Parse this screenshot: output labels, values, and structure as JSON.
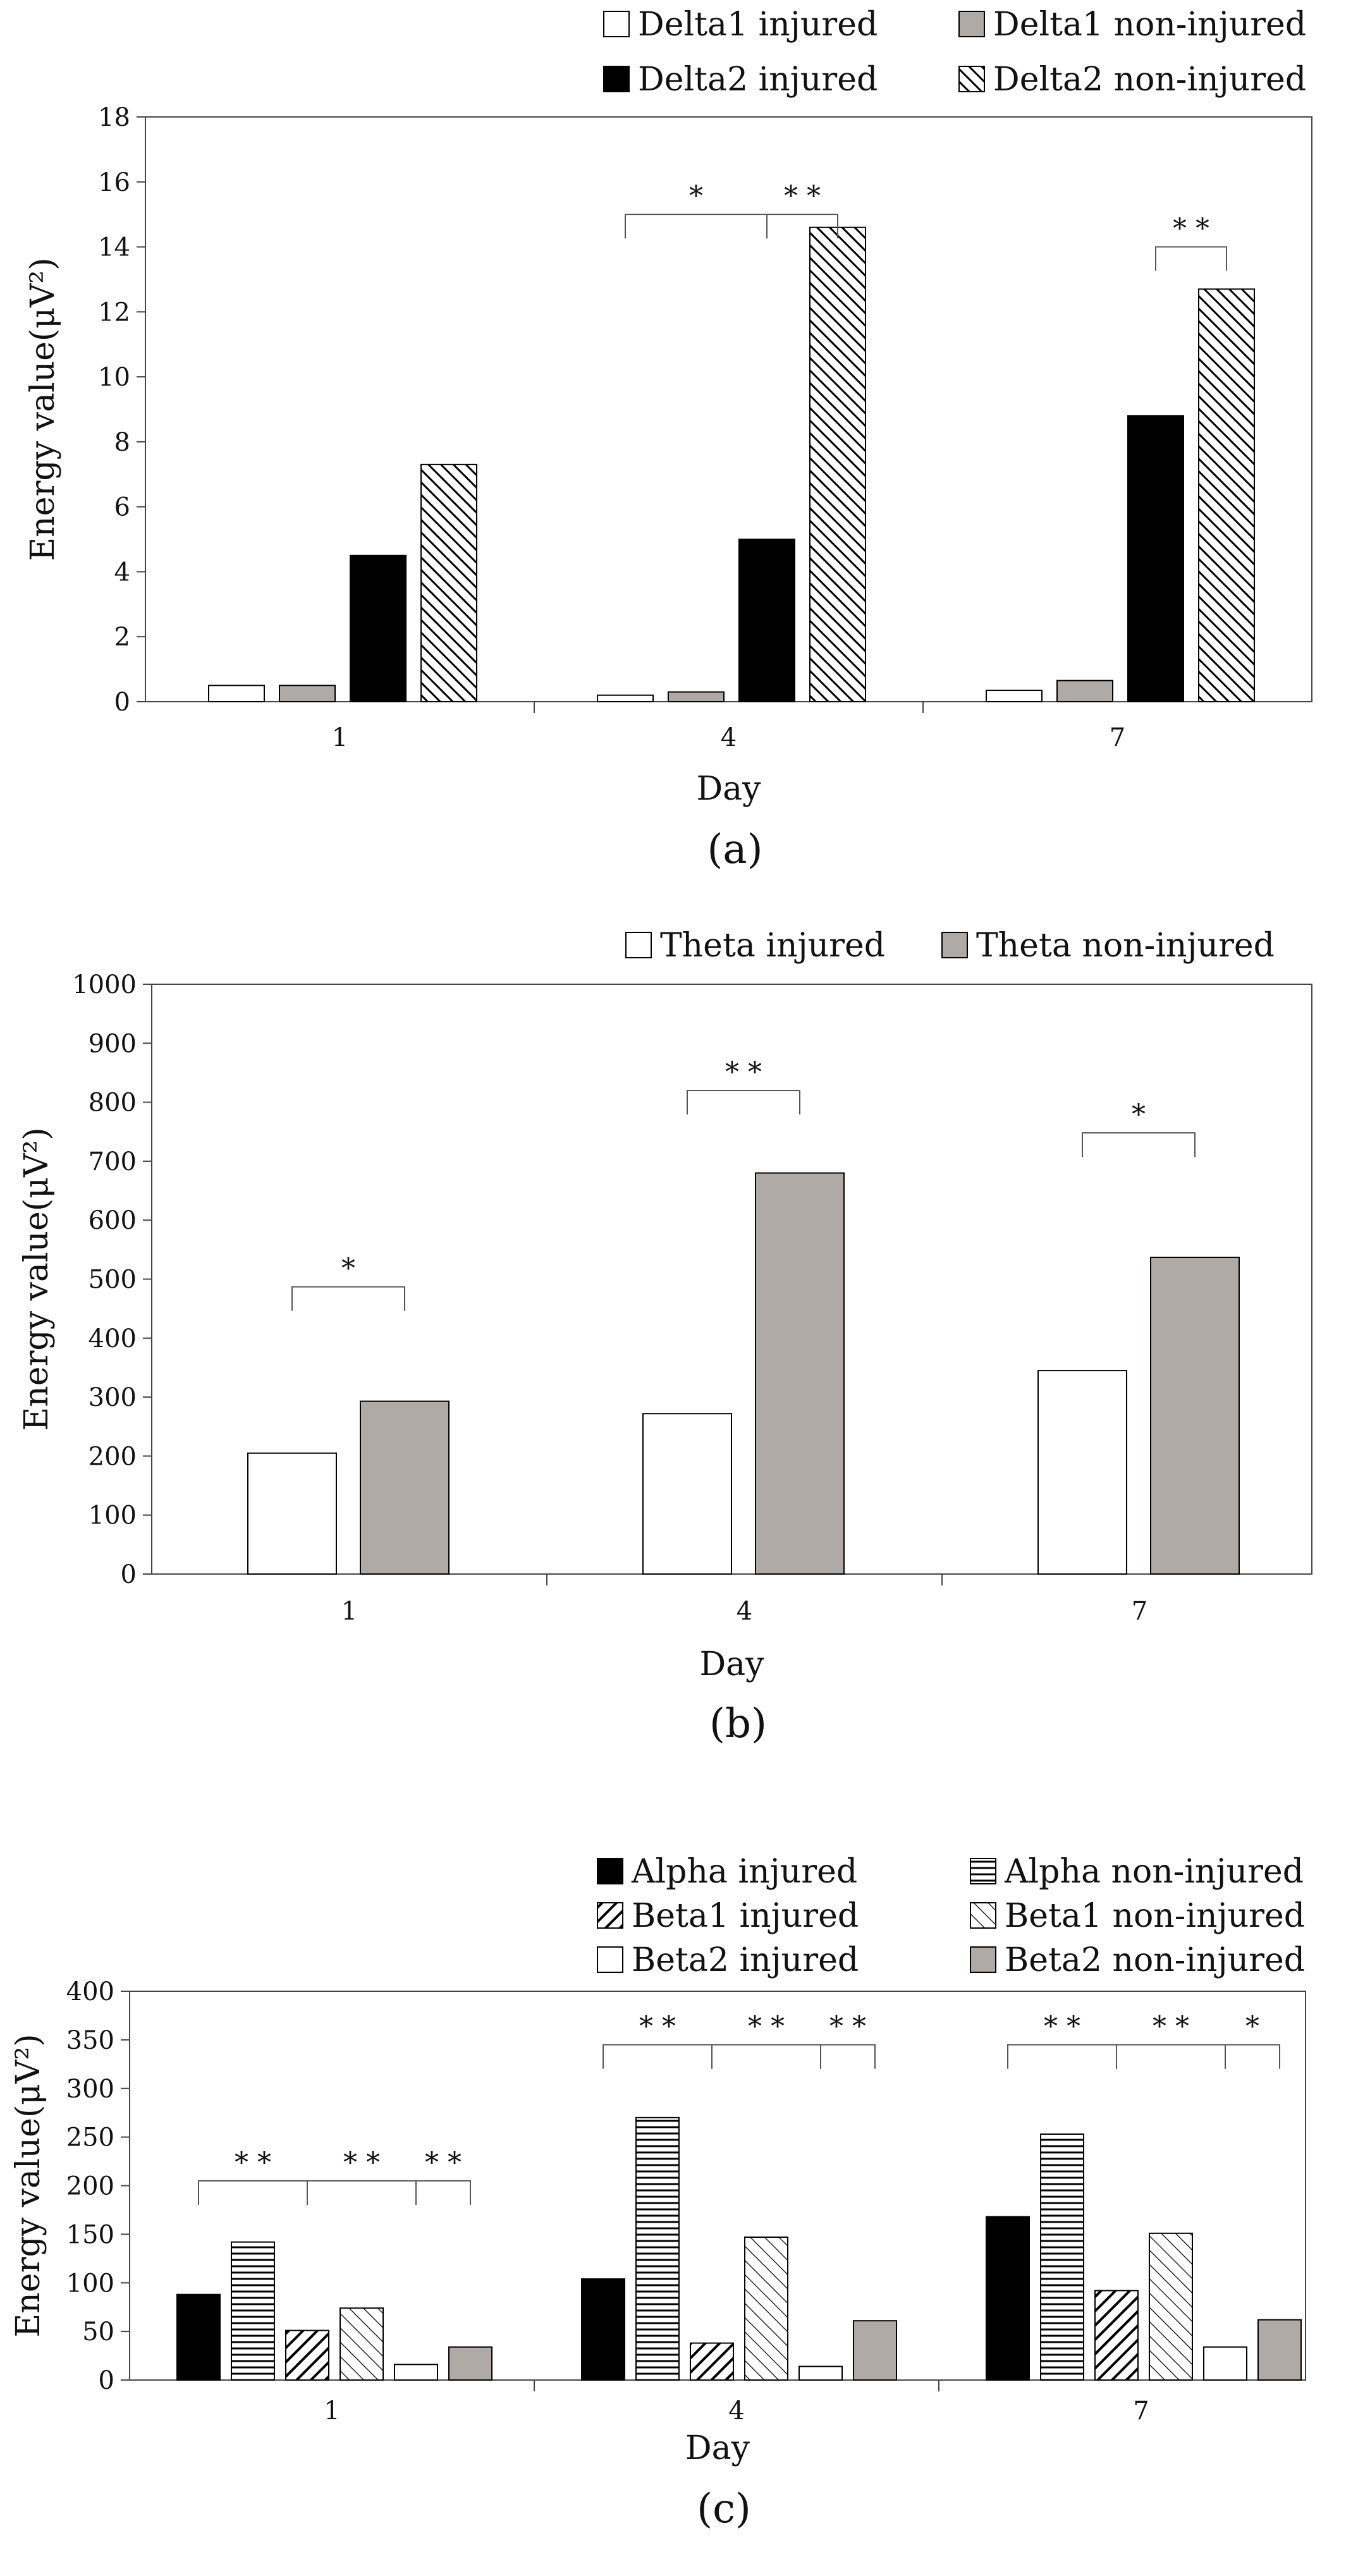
{
  "chart_data": [
    {
      "type": "bar",
      "panel": "a",
      "caption": "(a)",
      "xlabel": "Day",
      "ylabel": "Energy value(μV²)",
      "categories": [
        "1",
        "4",
        "7"
      ],
      "ylim": [
        0,
        18
      ],
      "yticks": [
        0,
        2,
        4,
        6,
        8,
        10,
        12,
        14,
        16,
        18
      ],
      "legend_position": "top",
      "series": [
        {
          "name": "Delta1 injured",
          "pattern": "white",
          "values": [
            0.5,
            0.2,
            0.35
          ]
        },
        {
          "name": "Delta1 non-injured",
          "pattern": "gray",
          "values": [
            0.5,
            0.3,
            0.65
          ]
        },
        {
          "name": "Delta2 injured",
          "pattern": "black",
          "values": [
            4.5,
            5.0,
            8.8
          ]
        },
        {
          "name": "Delta2 non-injured",
          "pattern": "diag-dense",
          "values": [
            7.3,
            14.6,
            12.7
          ]
        }
      ],
      "annotations": [
        {
          "category": "4",
          "from_series": 0,
          "to_series": 2,
          "y": 15.0,
          "label": "*"
        },
        {
          "category": "4",
          "from_series": 2,
          "to_series": 3,
          "y": 15.0,
          "label": "* *"
        },
        {
          "category": "7",
          "from_series": 2,
          "to_series": 3,
          "y": 14.0,
          "label": "* *"
        }
      ]
    },
    {
      "type": "bar",
      "panel": "b",
      "caption": "(b)",
      "xlabel": "Day",
      "ylabel": "Energy value(μV²)",
      "categories": [
        "1",
        "4",
        "7"
      ],
      "ylim": [
        0,
        1000
      ],
      "yticks": [
        0,
        100,
        200,
        300,
        400,
        500,
        600,
        700,
        800,
        900,
        1000
      ],
      "legend_position": "top",
      "series": [
        {
          "name": "Theta injured",
          "pattern": "white",
          "values": [
            205,
            272,
            345
          ]
        },
        {
          "name": "Theta non-injured",
          "pattern": "gray",
          "values": [
            293,
            680,
            537
          ]
        }
      ],
      "annotations": [
        {
          "category": "1",
          "from_series": 0,
          "to_series": 1,
          "y": 487,
          "label": "*"
        },
        {
          "category": "4",
          "from_series": 0,
          "to_series": 1,
          "y": 820,
          "label": "* *"
        },
        {
          "category": "7",
          "from_series": 0,
          "to_series": 1,
          "y": 748,
          "label": "*"
        }
      ]
    },
    {
      "type": "bar",
      "panel": "c",
      "caption": "(c)",
      "xlabel": "Day",
      "ylabel": "Energy value(μV²)",
      "categories": [
        "1",
        "4",
        "7"
      ],
      "ylim": [
        0,
        400
      ],
      "yticks": [
        0,
        50,
        100,
        150,
        200,
        250,
        300,
        350,
        400
      ],
      "legend_position": "top",
      "series": [
        {
          "name": "Alpha injured",
          "pattern": "black",
          "values": [
            88,
            104,
            168
          ]
        },
        {
          "name": "Alpha non-injured",
          "pattern": "horiz",
          "values": [
            142,
            270,
            253
          ]
        },
        {
          "name": "Beta1 injured",
          "pattern": "diag-bold",
          "values": [
            51,
            38,
            92
          ]
        },
        {
          "name": "Beta1 non-injured",
          "pattern": "diag-light",
          "values": [
            74,
            147,
            151
          ]
        },
        {
          "name": "Beta2 injured",
          "pattern": "white",
          "values": [
            16,
            14,
            34
          ]
        },
        {
          "name": "Beta2 non-injured",
          "pattern": "gray",
          "values": [
            34,
            61,
            62
          ]
        }
      ],
      "annotations": [
        {
          "category": "1",
          "from_series": 0,
          "to_series": 2,
          "y": 205,
          "label": "* *"
        },
        {
          "category": "1",
          "from_series": 2,
          "to_series": 4,
          "y": 205,
          "label": "* *"
        },
        {
          "category": "1",
          "from_series": 4,
          "to_series": 5,
          "y": 205,
          "label": "* *"
        },
        {
          "category": "4",
          "from_series": 0,
          "to_series": 2,
          "y": 345,
          "label": "* *"
        },
        {
          "category": "4",
          "from_series": 2,
          "to_series": 4,
          "y": 345,
          "label": "* *"
        },
        {
          "category": "4",
          "from_series": 4,
          "to_series": 5,
          "y": 345,
          "label": "* *"
        },
        {
          "category": "7",
          "from_series": 0,
          "to_series": 2,
          "y": 345,
          "label": "* *"
        },
        {
          "category": "7",
          "from_series": 2,
          "to_series": 4,
          "y": 345,
          "label": "* *"
        },
        {
          "category": "7",
          "from_series": 4,
          "to_series": 5,
          "y": 345,
          "label": "*"
        }
      ]
    }
  ]
}
